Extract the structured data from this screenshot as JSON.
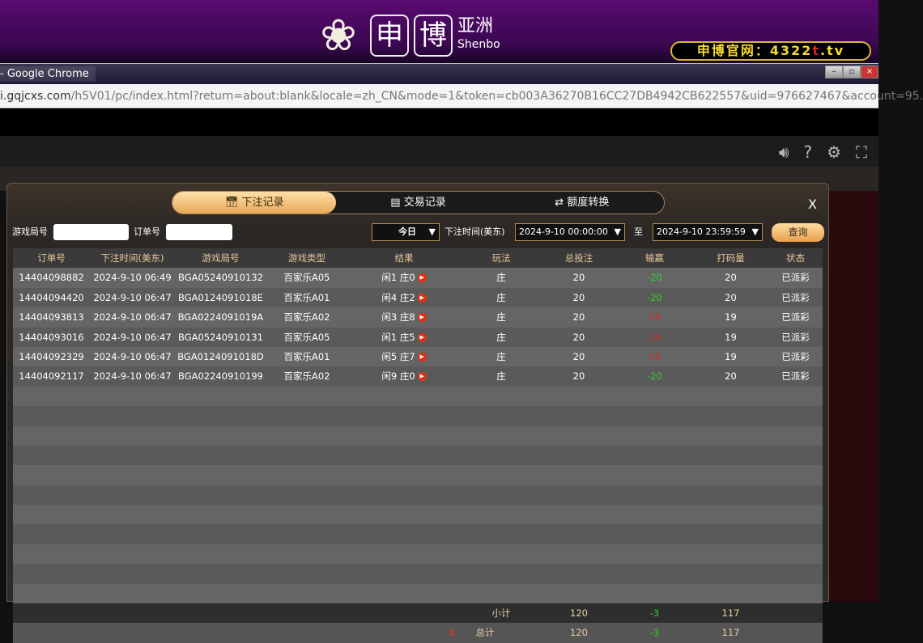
{
  "banner": {
    "brand_main": [
      "申",
      "博"
    ],
    "brand_side": "亚洲",
    "brand_sub": "Shenbo",
    "site_prefix": "申博官网：4322",
    "site_red": "t",
    "site_suffix": ".tv"
  },
  "browser": {
    "title": "- Google Chrome",
    "url_host": "i.gqjcxs.com",
    "url_path": "/h5V01/pc/index.html?return=about:blank&locale=zh_CN&mode=1&token=cb003A36270B16CC27DB4942CB622557&uid=976627467&account=95."
  },
  "modal": {
    "tabs": [
      {
        "label": "下注记录",
        "icon": "calendar-icon",
        "active": true
      },
      {
        "label": "交易记录",
        "icon": "document-icon",
        "active": false
      },
      {
        "label": "额度转换",
        "icon": "transfer-icon",
        "active": false
      }
    ],
    "close": "X",
    "filters": {
      "game_round_label": "游戏局号",
      "game_round_value": "",
      "order_label": "订单号",
      "order_value": "",
      "period": "今日",
      "time_label": "下注时间(美东)",
      "start": "2024-9-10 00:00:00",
      "to_label": "至",
      "end": "2024-9-10 23:59:59",
      "query": "查询"
    },
    "columns": [
      "订单号",
      "下注时间(美东)",
      "游戏局号",
      "游戏类型",
      "结果",
      "玩法",
      "总投注",
      "输赢",
      "打码量",
      "状态"
    ],
    "rows": [
      [
        "14404098882",
        "2024-9-10 06:49",
        "BGA05240910132",
        "百家乐A05",
        "闲1 庄0",
        "庄",
        "20",
        "-20",
        "20",
        "已派彩"
      ],
      [
        "14404094420",
        "2024-9-10 06:47",
        "BGA0124091018E",
        "百家乐A01",
        "闲4 庄2",
        "庄",
        "20",
        "-20",
        "20",
        "已派彩"
      ],
      [
        "14404093813",
        "2024-9-10 06:47",
        "BGA0224091019A",
        "百家乐A02",
        "闲3 庄8",
        "庄",
        "20",
        "19",
        "19",
        "已派彩"
      ],
      [
        "14404093016",
        "2024-9-10 06:47",
        "BGA05240910131",
        "百家乐A05",
        "闲1 庄5",
        "庄",
        "20",
        "19",
        "19",
        "已派彩"
      ],
      [
        "14404092329",
        "2024-9-10 06:47",
        "BGA0124091018D",
        "百家乐A01",
        "闲5 庄7",
        "庄",
        "20",
        "19",
        "19",
        "已派彩"
      ],
      [
        "14404092117",
        "2024-9-10 06:47",
        "BGA02240910199",
        "百家乐A02",
        "闲9 庄0",
        "庄",
        "20",
        "-20",
        "20",
        "已派彩"
      ]
    ],
    "subtotal": {
      "label": "小计",
      "bet": "120",
      "winloss": "-3",
      "valid": "117"
    },
    "total": {
      "label": "总计",
      "bet": "120",
      "winloss": "-3",
      "valid": "117"
    },
    "colors": {
      "win": "#d03030",
      "loss": "#30d030",
      "accent": "#e8a858"
    }
  }
}
